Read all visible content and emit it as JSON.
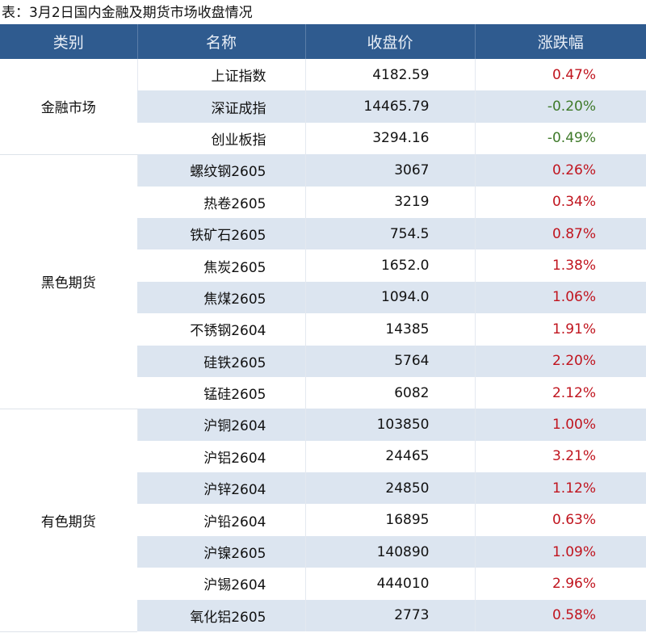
{
  "title": "表：3月2日国内金融及期货市场收盘情况",
  "colors": {
    "header_bg": "#2f5b8f",
    "stripe": "#dce5f0",
    "up": "#c0141e",
    "down": "#3f7a2a"
  },
  "headers": [
    "类别",
    "名称",
    "收盘价",
    "涨跌幅"
  ],
  "groups": [
    {
      "category": "金融市场",
      "rows": [
        {
          "name": "上证指数",
          "close": "4182.59",
          "change": "0.47%"
        },
        {
          "name": "深证成指",
          "close": "14465.79",
          "change": "-0.20%"
        },
        {
          "name": "创业板指",
          "close": "3294.16",
          "change": "-0.49%"
        }
      ]
    },
    {
      "category": "黑色期货",
      "rows": [
        {
          "name": "螺纹钢2605",
          "close": "3067",
          "change": "0.26%"
        },
        {
          "name": "热卷2605",
          "close": "3219",
          "change": "0.34%"
        },
        {
          "name": "铁矿石2605",
          "close": "754.5",
          "change": "0.87%"
        },
        {
          "name": "焦炭2605",
          "close": "1652.0",
          "change": "1.38%"
        },
        {
          "name": "焦煤2605",
          "close": "1094.0",
          "change": "1.06%"
        },
        {
          "name": "不锈钢2604",
          "close": "14385",
          "change": "1.91%"
        },
        {
          "name": "硅铁2605",
          "close": "5764",
          "change": "2.20%"
        },
        {
          "name": "锰硅2605",
          "close": "6082",
          "change": "2.12%"
        }
      ]
    },
    {
      "category": "有色期货",
      "rows": [
        {
          "name": "沪铜2604",
          "close": "103850",
          "change": "1.00%"
        },
        {
          "name": "沪铝2604",
          "close": "24465",
          "change": "3.21%"
        },
        {
          "name": "沪锌2604",
          "close": "24850",
          "change": "1.12%"
        },
        {
          "name": "沪铅2604",
          "close": "16895",
          "change": "0.63%"
        },
        {
          "name": "沪镍2605",
          "close": "140890",
          "change": "1.09%"
        },
        {
          "name": "沪锡2604",
          "close": "444010",
          "change": "2.96%"
        },
        {
          "name": "氧化铝2605",
          "close": "2773",
          "change": "0.58%"
        }
      ]
    }
  ]
}
